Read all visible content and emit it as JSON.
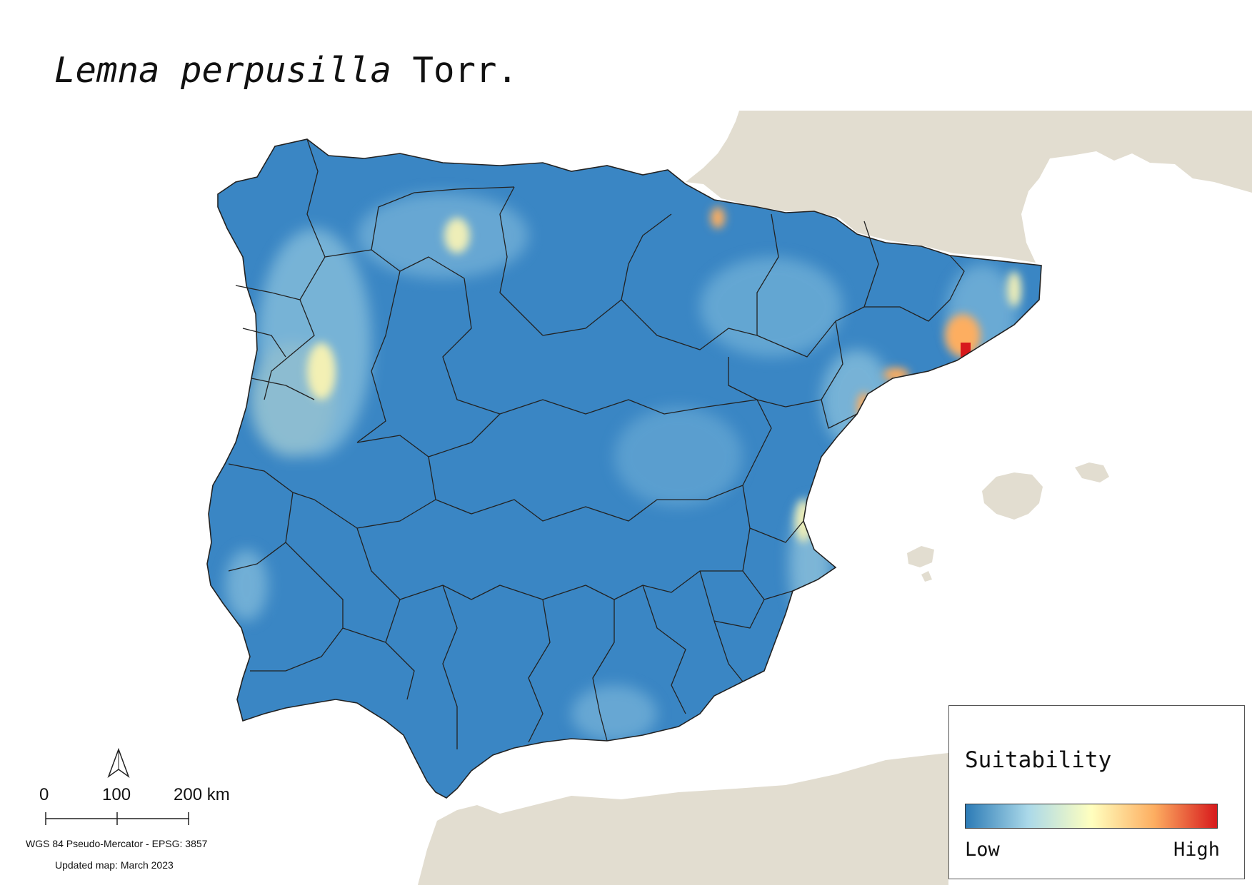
{
  "title": {
    "species": "Lemna perpusilla",
    "author": "Torr."
  },
  "legend": {
    "title": "Suitability",
    "low_label": "Low",
    "high_label": "High",
    "ramp_colors": [
      "#2c7bb6",
      "#abd9e9",
      "#ffffbf",
      "#fdae61",
      "#d7191c"
    ]
  },
  "scale_bar": {
    "labels": [
      "0",
      "100",
      "200 km"
    ]
  },
  "north_arrow": {
    "icon": "north-arrow-icon"
  },
  "crs": "WGS 84 Pseudo-Mercator  - EPSG: 3857",
  "updated": "Updated map: March 2023",
  "colors": {
    "land_other": "#e2ddd0",
    "sea": "#ffffff",
    "low": "#2c7bb6",
    "high": "#d7191c"
  }
}
